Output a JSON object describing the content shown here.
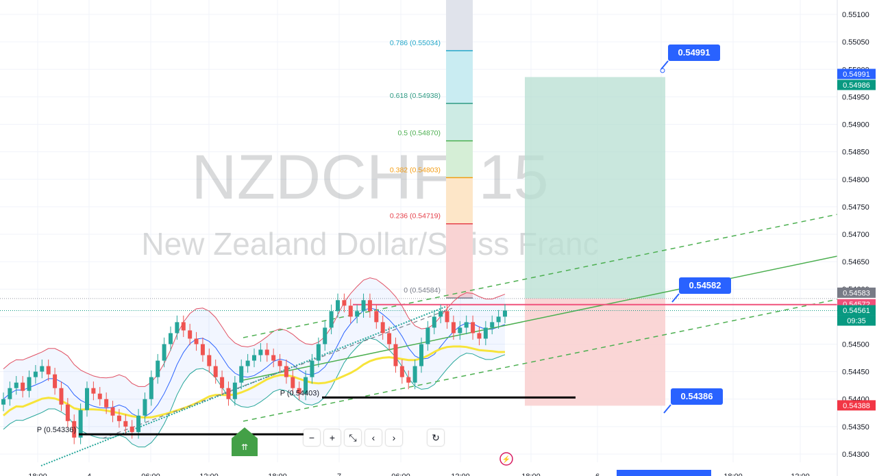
{
  "watermark": {
    "symbol": "NZDCHF, 15",
    "description": "New Zealand Dollar/Swiss Franc"
  },
  "colors": {
    "up": "#26a69a",
    "down": "#ef5350",
    "axis_blue": "#2962ff",
    "profit_zone": "#b7dfd2",
    "loss_zone": "#f9cfcf",
    "current_price": "#f0507a",
    "ema": "#f7e43a",
    "channel": "#4caf50"
  },
  "chart_data": {
    "type": "candlestick",
    "title": "NZDCHF, 15",
    "subtitle": "New Zealand Dollar/Swiss Franc",
    "ylim": [
      0.54285,
      0.5511
    ],
    "y_ticks": [
      "0.55100",
      "0.55050",
      "0.55000",
      "0.54950",
      "0.54900",
      "0.54850",
      "0.54800",
      "0.54750",
      "0.54700",
      "0.54650",
      "0.54600",
      "0.54550",
      "0.54500",
      "0.54450",
      "0.54400",
      "0.54350",
      "0.54300"
    ],
    "x_ticks": [
      "18:00",
      "4",
      "06:00",
      "12:00",
      "18:00",
      "7",
      "06:00",
      "12:00",
      "18:00",
      "6",
      "18:00",
      "12:00"
    ],
    "closes": [
      0.544,
      0.5442,
      0.5443,
      0.54415,
      0.5444,
      0.5445,
      0.5446,
      0.54445,
      0.5442,
      0.5439,
      0.5436,
      0.5433,
      0.5438,
      0.5442,
      0.5441,
      0.544,
      0.54385,
      0.5437,
      0.5436,
      0.5435,
      0.5434,
      0.5437,
      0.544,
      0.5444,
      0.5447,
      0.545,
      0.5452,
      0.5454,
      0.54525,
      0.5451,
      0.545,
      0.5448,
      0.5446,
      0.5444,
      0.5442,
      0.544,
      0.5443,
      0.5446,
      0.5447,
      0.5448,
      0.5449,
      0.5448,
      0.5447,
      0.5446,
      0.5444,
      0.5442,
      0.5441,
      0.5444,
      0.5447,
      0.545,
      0.5453,
      0.5456,
      0.5458,
      0.5457,
      0.5455,
      0.5456,
      0.5458,
      0.5456,
      0.5454,
      0.5452,
      0.545,
      0.5446,
      0.5444,
      0.5443,
      0.5446,
      0.545,
      0.5453,
      0.5455,
      0.5456,
      0.5454,
      0.5452,
      0.5453,
      0.5454,
      0.5452,
      0.5451,
      0.5453,
      0.5454,
      0.5455,
      0.54561
    ],
    "fibonacci": [
      {
        "label": "0.786 (0.55034)",
        "price": 0.55034,
        "color": "#22a7c9"
      },
      {
        "label": "0.618 (0.54938)",
        "price": 0.54938,
        "color": "#2e9a82"
      },
      {
        "label": "0.5 (0.54870)",
        "price": 0.5487,
        "color": "#4caf50"
      },
      {
        "label": "0.382 (0.54803)",
        "price": 0.54803,
        "color": "#f39c12"
      },
      {
        "label": "0.236 (0.54719)",
        "price": 0.54719,
        "color": "#e5404a"
      },
      {
        "label": "0 (0.54584)",
        "price": 0.54584,
        "color": "#787b86"
      }
    ],
    "position": {
      "target": 0.54986,
      "entry": 0.54583,
      "stop": 0.54388
    },
    "pivots": [
      {
        "label": "P (0.54336)",
        "price": 0.54336
      },
      {
        "label": "P (0.54403)",
        "price": 0.54403
      }
    ],
    "callouts": [
      {
        "text": "0.54991",
        "price": 0.54991
      },
      {
        "text": "0.54582",
        "price": 0.54582
      },
      {
        "text": "0.54386",
        "price": 0.54386
      }
    ],
    "price_labels": [
      {
        "text": "0.54991",
        "price": 0.54991,
        "color": "#2962ff"
      },
      {
        "text": "0.54986",
        "price": 0.54986,
        "color": "#089981"
      },
      {
        "text": "0.54583",
        "price": 0.54583,
        "color": "#787b86"
      },
      {
        "text": "0.54572",
        "price": 0.54572,
        "color": "#f0507a"
      },
      {
        "text": "0.54561",
        "price": 0.54561,
        "color": "#089981"
      },
      {
        "text": "0.54388",
        "price": 0.54388,
        "color": "#f23645"
      }
    ],
    "countdown": "09:35"
  },
  "toolbar": {
    "zoom_out": "−",
    "zoom_in": "+",
    "reset_scale": "⤡",
    "scroll_left": "‹",
    "scroll_right": "›",
    "reset": "↻"
  }
}
